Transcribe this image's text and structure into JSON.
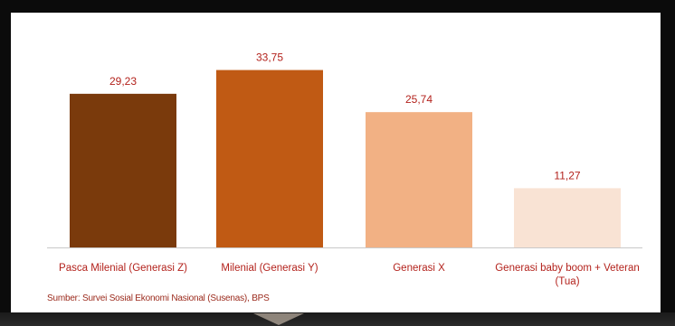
{
  "chart_data": {
    "type": "bar",
    "categories": [
      [
        "Pasca Milenial (Generasi Z)"
      ],
      [
        "Milenial (Generasi Y)"
      ],
      [
        "Generasi X"
      ],
      [
        "Generasi baby boom + Veteran",
        "(Tua)"
      ]
    ],
    "values": [
      29.23,
      33.75,
      25.74,
      11.27
    ],
    "value_labels": [
      "29,23",
      "33,75",
      "25,74",
      "11,27"
    ],
    "colors": [
      "#7a3a0c",
      "#c05a14",
      "#f2b184",
      "#f9e3d4"
    ],
    "ylim": [
      0,
      40.2
    ],
    "grid": false,
    "legend": "none",
    "label_color": "#b3221c",
    "axis_color": "#c9c9c9"
  },
  "source_text": "Sumber: Survei Sosial Ekonomi Nasional (Susenas), BPS"
}
